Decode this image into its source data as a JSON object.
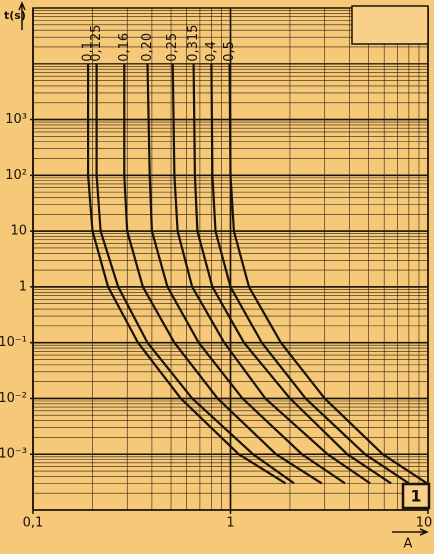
{
  "chart_data": {
    "type": "line",
    "log_x": true,
    "log_y": true,
    "grid": true,
    "y_label": "t(s)",
    "x_label": "A",
    "panel_label": "1",
    "color": "#1a1208",
    "xlim": [
      0.1,
      10
    ],
    "ylim": [
      0.0001,
      100000
    ],
    "xticks": [
      {
        "value": 0.1,
        "label": "0,1"
      },
      1,
      10
    ],
    "yticks": [
      {
        "value": 0.001,
        "label": "10⁻³"
      },
      {
        "value": 0.01,
        "label": "10⁻²"
      },
      {
        "value": 0.1,
        "label": "10⁻¹"
      },
      1,
      10,
      {
        "value": 100,
        "label": "10²"
      },
      {
        "value": 1000,
        "label": "10³"
      }
    ],
    "series": [
      {
        "name": "0,1",
        "x": [
          0.19,
          0.19,
          0.2,
          0.24,
          0.34,
          0.56,
          1.1,
          1.9
        ],
        "values": [
          10000,
          100,
          10,
          1,
          0.1,
          0.01,
          0.001,
          0.0003
        ]
      },
      {
        "name": "0,125",
        "x": [
          0.21,
          0.21,
          0.22,
          0.27,
          0.38,
          0.64,
          1.3,
          2.1
        ],
        "values": [
          10000,
          100,
          10,
          1,
          0.1,
          0.01,
          0.001,
          0.0003
        ]
      },
      {
        "name": "0,16",
        "x": [
          0.29,
          0.29,
          0.3,
          0.36,
          0.52,
          0.86,
          1.7,
          2.9
        ],
        "values": [
          10000,
          100,
          10,
          1,
          0.1,
          0.01,
          0.001,
          0.0003
        ]
      },
      {
        "name": "0,20",
        "x": [
          0.38,
          0.39,
          0.4,
          0.48,
          0.69,
          1.15,
          2.3,
          3.8
        ],
        "values": [
          10000,
          100,
          10,
          1,
          0.1,
          0.01,
          0.001,
          0.0003
        ]
      },
      {
        "name": "0,25",
        "x": [
          0.51,
          0.52,
          0.54,
          0.64,
          0.93,
          1.5,
          3.1,
          5.1
        ],
        "values": [
          10000,
          100,
          10,
          1,
          0.1,
          0.01,
          0.001,
          0.0003
        ]
      },
      {
        "name": "0,315",
        "x": [
          0.65,
          0.66,
          0.68,
          0.81,
          1.17,
          2,
          3.9,
          6.5
        ],
        "values": [
          10000,
          100,
          10,
          1,
          0.1,
          0.01,
          0.001,
          0.0003
        ]
      },
      {
        "name": "0,4",
        "x": [
          0.8,
          0.81,
          0.84,
          1,
          1.44,
          2.4,
          4.8,
          8
        ],
        "values": [
          10000,
          100,
          10,
          1,
          0.1,
          0.01,
          0.001,
          0.0003
        ]
      },
      {
        "name": "0,5",
        "x": [
          0.99,
          1,
          1.04,
          1.24,
          1.8,
          3,
          5.9,
          9.9
        ],
        "values": [
          10000,
          100,
          10,
          1,
          0.1,
          0.01,
          0.001,
          0.0003
        ]
      }
    ]
  }
}
